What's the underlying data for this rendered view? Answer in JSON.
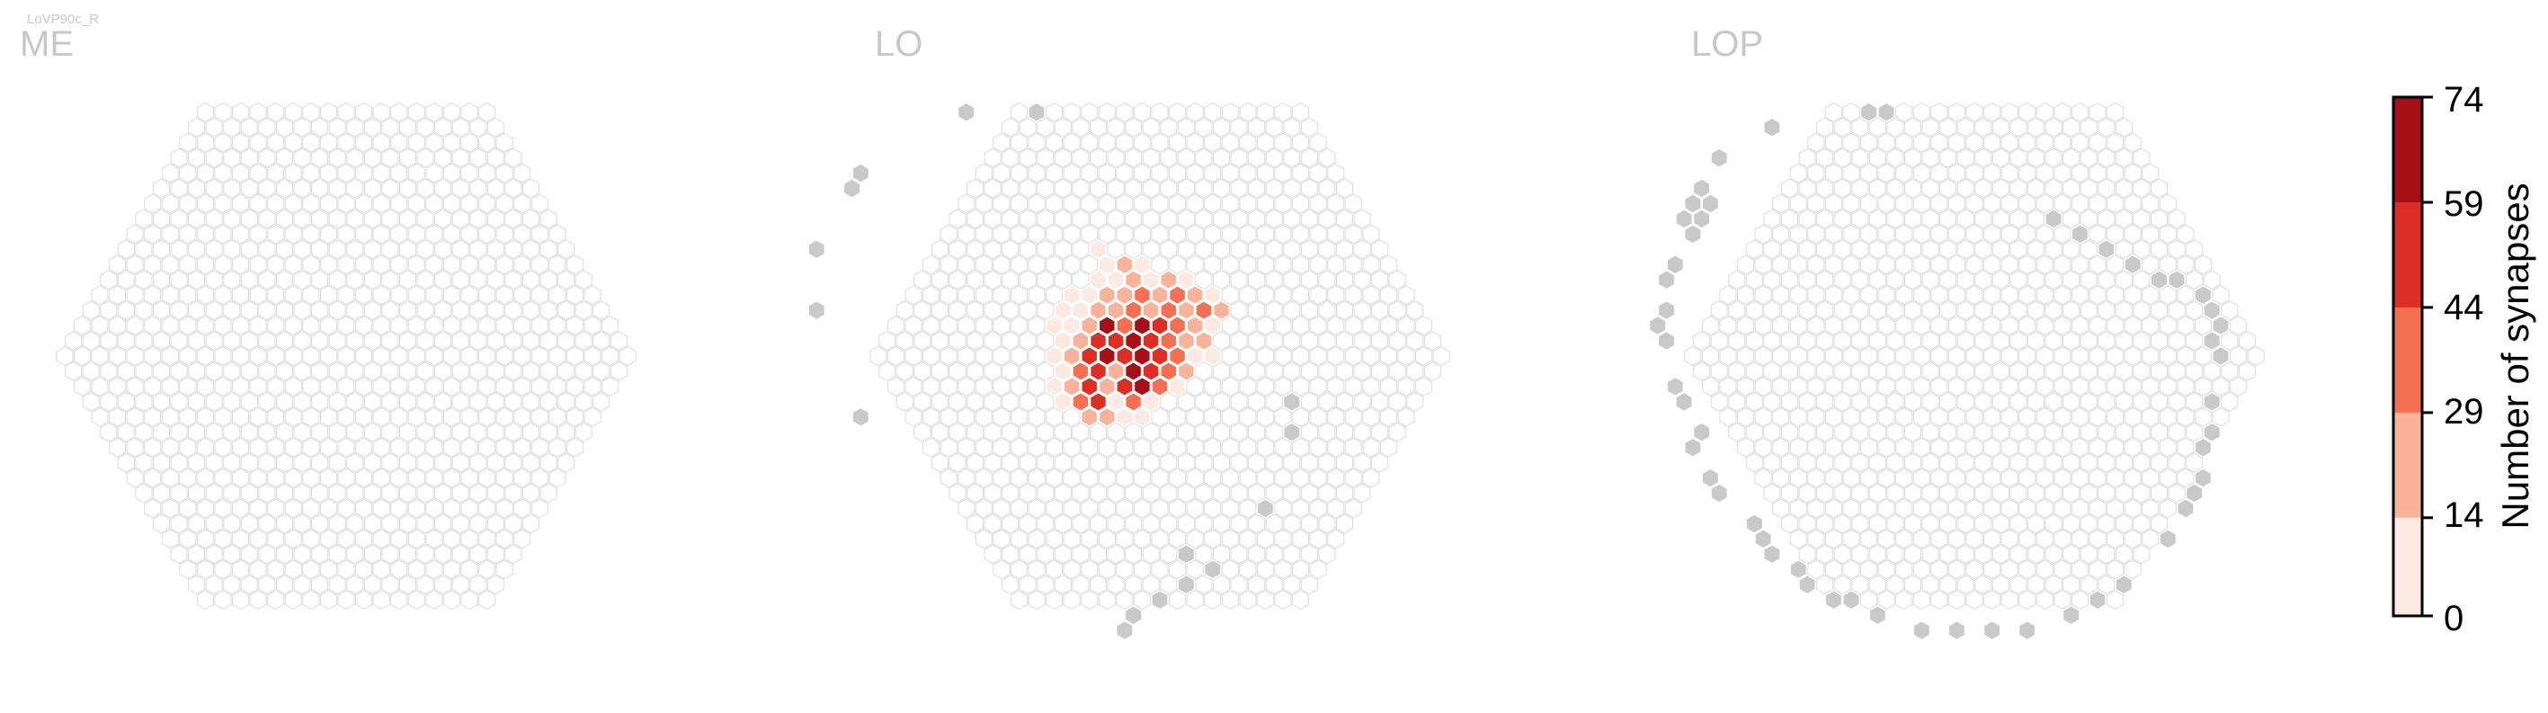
{
  "figure_label": "LoVP90c_R",
  "colorbar": {
    "label": "Number of synapses",
    "ticks": [
      "74",
      "59",
      "44",
      "29",
      "14",
      "0"
    ],
    "bounds": [
      0,
      14,
      29,
      44,
      59,
      74
    ],
    "colors": [
      "#fce9e1",
      "#f9b39b",
      "#f56f52",
      "#dc2e24",
      "#a50f15"
    ]
  },
  "colors": {
    "empty_fill": "#ffffff",
    "empty_stroke": "#dadada",
    "grey_fill": "#c9c9c9",
    "label": "#c7c7c7"
  },
  "chart_data": [
    {
      "type": "heatmap",
      "panel": "ME",
      "title": "ME",
      "values": [],
      "grey_cells": []
    },
    {
      "type": "heatmap",
      "panel": "LO",
      "title": "LO",
      "values": [
        {
          "q": 0,
          "r": -7,
          "v": 3
        },
        {
          "q": 0,
          "r": -6,
          "v": 5
        },
        {
          "q": 1,
          "r": -6,
          "v": 18
        },
        {
          "q": 2,
          "r": -6,
          "v": 6
        },
        {
          "q": -1,
          "r": -5,
          "v": 4
        },
        {
          "q": 0,
          "r": -5,
          "v": 9
        },
        {
          "q": 1,
          "r": -5,
          "v": 20
        },
        {
          "q": 2,
          "r": -5,
          "v": 12
        },
        {
          "q": 3,
          "r": -5,
          "v": 22
        },
        {
          "q": 4,
          "r": -5,
          "v": 8
        },
        {
          "q": -3,
          "r": -4,
          "v": 5
        },
        {
          "q": -2,
          "r": -4,
          "v": 10
        },
        {
          "q": -1,
          "r": -4,
          "v": 25
        },
        {
          "q": 0,
          "r": -4,
          "v": 18
        },
        {
          "q": 1,
          "r": -4,
          "v": 30
        },
        {
          "q": 2,
          "r": -4,
          "v": 24
        },
        {
          "q": 3,
          "r": -4,
          "v": 42
        },
        {
          "q": 4,
          "r": -4,
          "v": 20
        },
        {
          "q": 5,
          "r": -4,
          "v": 6
        },
        {
          "q": -4,
          "r": -3,
          "v": 4
        },
        {
          "q": -3,
          "r": -3,
          "v": 12
        },
        {
          "q": -2,
          "r": -3,
          "v": 20
        },
        {
          "q": -1,
          "r": -3,
          "v": 16
        },
        {
          "q": 0,
          "r": -3,
          "v": 32
        },
        {
          "q": 1,
          "r": -3,
          "v": 22
        },
        {
          "q": 2,
          "r": -3,
          "v": 38
        },
        {
          "q": 3,
          "r": -3,
          "v": 28
        },
        {
          "q": 4,
          "r": -3,
          "v": 35
        },
        {
          "q": 5,
          "r": -3,
          "v": 18
        },
        {
          "q": -5,
          "r": -2,
          "v": 3
        },
        {
          "q": -4,
          "r": -2,
          "v": 9
        },
        {
          "q": -3,
          "r": -2,
          "v": 24
        },
        {
          "q": -2,
          "r": -2,
          "v": 68
        },
        {
          "q": -1,
          "r": -2,
          "v": 30
        },
        {
          "q": 0,
          "r": -2,
          "v": 72
        },
        {
          "q": 1,
          "r": -2,
          "v": 45
        },
        {
          "q": 2,
          "r": -2,
          "v": 30
        },
        {
          "q": 3,
          "r": -2,
          "v": 20
        },
        {
          "q": 4,
          "r": -2,
          "v": 12
        },
        {
          "q": -5,
          "r": -1,
          "v": 6
        },
        {
          "q": -4,
          "r": -1,
          "v": 28
        },
        {
          "q": -3,
          "r": -1,
          "v": 48
        },
        {
          "q": -2,
          "r": -1,
          "v": 55
        },
        {
          "q": -1,
          "r": -1,
          "v": 62
        },
        {
          "q": 0,
          "r": -1,
          "v": 50
        },
        {
          "q": 1,
          "r": -1,
          "v": 40
        },
        {
          "q": 2,
          "r": -1,
          "v": 25
        },
        {
          "q": 3,
          "r": -1,
          "v": 15
        },
        {
          "q": -6,
          "r": 0,
          "v": 4
        },
        {
          "q": -5,
          "r": 0,
          "v": 20
        },
        {
          "q": -4,
          "r": 0,
          "v": 46
        },
        {
          "q": -3,
          "r": 0,
          "v": 74
        },
        {
          "q": -2,
          "r": 0,
          "v": 58
        },
        {
          "q": -1,
          "r": 0,
          "v": 70
        },
        {
          "q": 0,
          "r": 0,
          "v": 48
        },
        {
          "q": 1,
          "r": 0,
          "v": 35
        },
        {
          "q": 2,
          "r": 0,
          "v": 12
        },
        {
          "q": 3,
          "r": 0,
          "v": 5
        },
        {
          "q": -6,
          "r": 1,
          "v": 8
        },
        {
          "q": -5,
          "r": 1,
          "v": 38
        },
        {
          "q": -4,
          "r": 1,
          "v": 52
        },
        {
          "q": -3,
          "r": 1,
          "v": 24
        },
        {
          "q": -2,
          "r": 1,
          "v": 60
        },
        {
          "q": -1,
          "r": 1,
          "v": 50
        },
        {
          "q": 0,
          "r": 1,
          "v": 30
        },
        {
          "q": 1,
          "r": 1,
          "v": 18
        },
        {
          "q": -7,
          "r": 2,
          "v": 5
        },
        {
          "q": -6,
          "r": 2,
          "v": 16
        },
        {
          "q": -5,
          "r": 2,
          "v": 50
        },
        {
          "q": -4,
          "r": 2,
          "v": 20
        },
        {
          "q": -3,
          "r": 2,
          "v": 45
        },
        {
          "q": -2,
          "r": 2,
          "v": 72
        },
        {
          "q": -1,
          "r": 2,
          "v": 35
        },
        {
          "q": 0,
          "r": 2,
          "v": 12
        },
        {
          "q": -7,
          "r": 3,
          "v": 4
        },
        {
          "q": -6,
          "r": 3,
          "v": 30
        },
        {
          "q": -5,
          "r": 3,
          "v": 48
        },
        {
          "q": -4,
          "r": 3,
          "v": 10
        },
        {
          "q": -3,
          "r": 3,
          "v": 32
        },
        {
          "q": -2,
          "r": 3,
          "v": 8
        },
        {
          "q": -6,
          "r": 4,
          "v": 20
        },
        {
          "q": -5,
          "r": 4,
          "v": 18
        },
        {
          "q": -4,
          "r": 4,
          "v": 4
        },
        {
          "q": -3,
          "r": 4,
          "v": 6
        }
      ],
      "grey_cells": [
        {
          "q": -3,
          "r": -16
        },
        {
          "q": 1,
          "r": -16
        },
        {
          "q": -11,
          "r": -12
        },
        {
          "q": -12,
          "r": -11
        },
        {
          "q": -16,
          "r": -7
        },
        {
          "q": -18,
          "r": -3
        },
        {
          "q": -19,
          "r": 4
        },
        {
          "q": 6,
          "r": 3
        },
        {
          "q": 5,
          "r": 5
        },
        {
          "q": 1,
          "r": 10
        },
        {
          "q": -5,
          "r": 13
        },
        {
          "q": -11,
          "r": 18
        },
        {
          "q": -10,
          "r": 17
        },
        {
          "q": -8,
          "r": 16
        },
        {
          "q": -6,
          "r": 15
        },
        {
          "q": -4,
          "r": 14
        }
      ]
    },
    {
      "type": "heatmap",
      "panel": "LOP",
      "title": "LOP",
      "values": [],
      "grey_cells": [
        {
          "q": -4,
          "r": -15
        },
        {
          "q": -8,
          "r": -13
        },
        {
          "q": 2,
          "r": -16
        },
        {
          "q": 3,
          "r": -16
        },
        {
          "q": -10,
          "r": -11
        },
        {
          "q": -10,
          "r": -10
        },
        {
          "q": -11,
          "r": -10
        },
        {
          "q": -11,
          "r": -9
        },
        {
          "q": -12,
          "r": -9
        },
        {
          "q": -12,
          "r": -8
        },
        {
          "q": -14,
          "r": -6
        },
        {
          "q": -15,
          "r": -5
        },
        {
          "q": -16,
          "r": -3
        },
        {
          "q": -17,
          "r": -2
        },
        {
          "q": -17,
          "r": -1
        },
        {
          "q": -18,
          "r": 2
        },
        {
          "q": -18,
          "r": 3
        },
        {
          "q": -18,
          "r": 5
        },
        {
          "q": -19,
          "r": 6
        },
        {
          "q": -19,
          "r": 8
        },
        {
          "q": -19,
          "r": 9
        },
        {
          "q": -18,
          "r": 11
        },
        {
          "q": -18,
          "r": 12
        },
        {
          "q": -18,
          "r": 13
        },
        {
          "q": -17,
          "r": 14
        },
        {
          "q": -17,
          "r": 15
        },
        {
          "q": -16,
          "r": 16
        },
        {
          "q": -15,
          "r": 16
        },
        {
          "q": -14,
          "r": 17
        },
        {
          "q": -12,
          "r": 18
        },
        {
          "q": -10,
          "r": 18
        },
        {
          "q": -8,
          "r": 18
        },
        {
          "q": -6,
          "r": 18
        },
        {
          "q": -3,
          "r": 17
        },
        {
          "q": -1,
          "r": 16
        },
        {
          "q": 1,
          "r": 15
        },
        {
          "q": 5,
          "r": 12
        },
        {
          "q": 7,
          "r": 10
        },
        {
          "q": 8,
          "r": 9
        },
        {
          "q": 9,
          "r": 8
        },
        {
          "q": 10,
          "r": 6
        },
        {
          "q": 11,
          "r": 5
        },
        {
          "q": 12,
          "r": 3
        },
        {
          "q": 14,
          "r": -1
        },
        {
          "q": 14,
          "r": 0
        },
        {
          "q": 15,
          "r": -2
        },
        {
          "q": 15,
          "r": -3
        },
        {
          "q": 15,
          "r": -4
        },
        {
          "q": 14,
          "r": -5
        },
        {
          "q": 13,
          "r": -5
        },
        {
          "q": 12,
          "r": -6
        },
        {
          "q": 11,
          "r": -7
        },
        {
          "q": 10,
          "r": -8
        },
        {
          "q": 9,
          "r": -9
        }
      ]
    }
  ]
}
